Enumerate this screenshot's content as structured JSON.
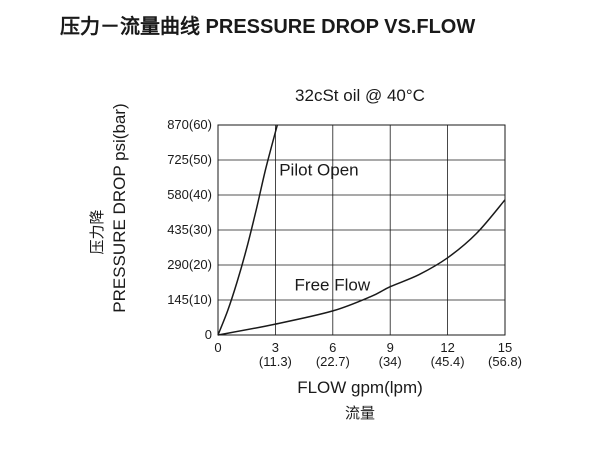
{
  "title": "压力－流量曲线 PRESSURE DROP VS.FLOW",
  "chart_data": {
    "type": "line",
    "subtitle": "32cSt  oil @ 40°C",
    "xlabel": "FLOW gpm(lpm)",
    "xlabel_cn": "流量",
    "ylabel": "PRESSURE DROP  psi(bar)",
    "ylabel_cn": "压力降",
    "xlim": [
      0,
      15
    ],
    "ylim": [
      0,
      870
    ],
    "grid": true,
    "x_ticks": [
      {
        "value": 0,
        "label": "0",
        "sub": ""
      },
      {
        "value": 3,
        "label": "3",
        "sub": "(11.3)"
      },
      {
        "value": 6,
        "label": "6",
        "sub": "(22.7)"
      },
      {
        "value": 9,
        "label": "9",
        "sub": "(34)"
      },
      {
        "value": 12,
        "label": "12",
        "sub": "(45.4)"
      },
      {
        "value": 15,
        "label": "15",
        "sub": "(56.8)"
      }
    ],
    "y_ticks": [
      {
        "value": 0,
        "label": "0"
      },
      {
        "value": 145,
        "label": "145(10)"
      },
      {
        "value": 290,
        "label": "290(20)"
      },
      {
        "value": 435,
        "label": "435(30)"
      },
      {
        "value": 580,
        "label": "580(40)"
      },
      {
        "value": 725,
        "label": "725(50)"
      },
      {
        "value": 870,
        "label": "870(60)"
      }
    ],
    "series": [
      {
        "name": "Pilot Open",
        "x": [
          0,
          0.5,
          1,
          1.5,
          2,
          2.5,
          3.1
        ],
        "y": [
          0,
          100,
          220,
          360,
          520,
          690,
          870
        ]
      },
      {
        "name": "Free Flow",
        "x": [
          0,
          3,
          6,
          8,
          9,
          10.5,
          12,
          13.5,
          15
        ],
        "y": [
          0,
          45,
          100,
          160,
          200,
          250,
          320,
          420,
          560
        ]
      }
    ],
    "annotations": [
      {
        "text": "Pilot Open",
        "x": 3.2,
        "y": 660
      },
      {
        "text": "Free Flow",
        "x": 4.0,
        "y": 185
      }
    ]
  }
}
